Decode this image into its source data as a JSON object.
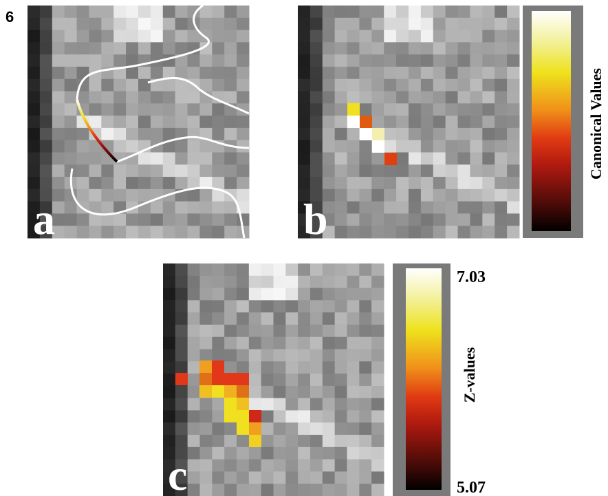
{
  "figure_number": "6",
  "panels": [
    {
      "label": "a"
    },
    {
      "label": "b"
    },
    {
      "label": "c"
    }
  ],
  "colorbars": [
    {
      "title": "Canonical Values"
    },
    {
      "title": "Z-values",
      "max_label": "7.03",
      "min_label": "5.07"
    }
  ]
}
